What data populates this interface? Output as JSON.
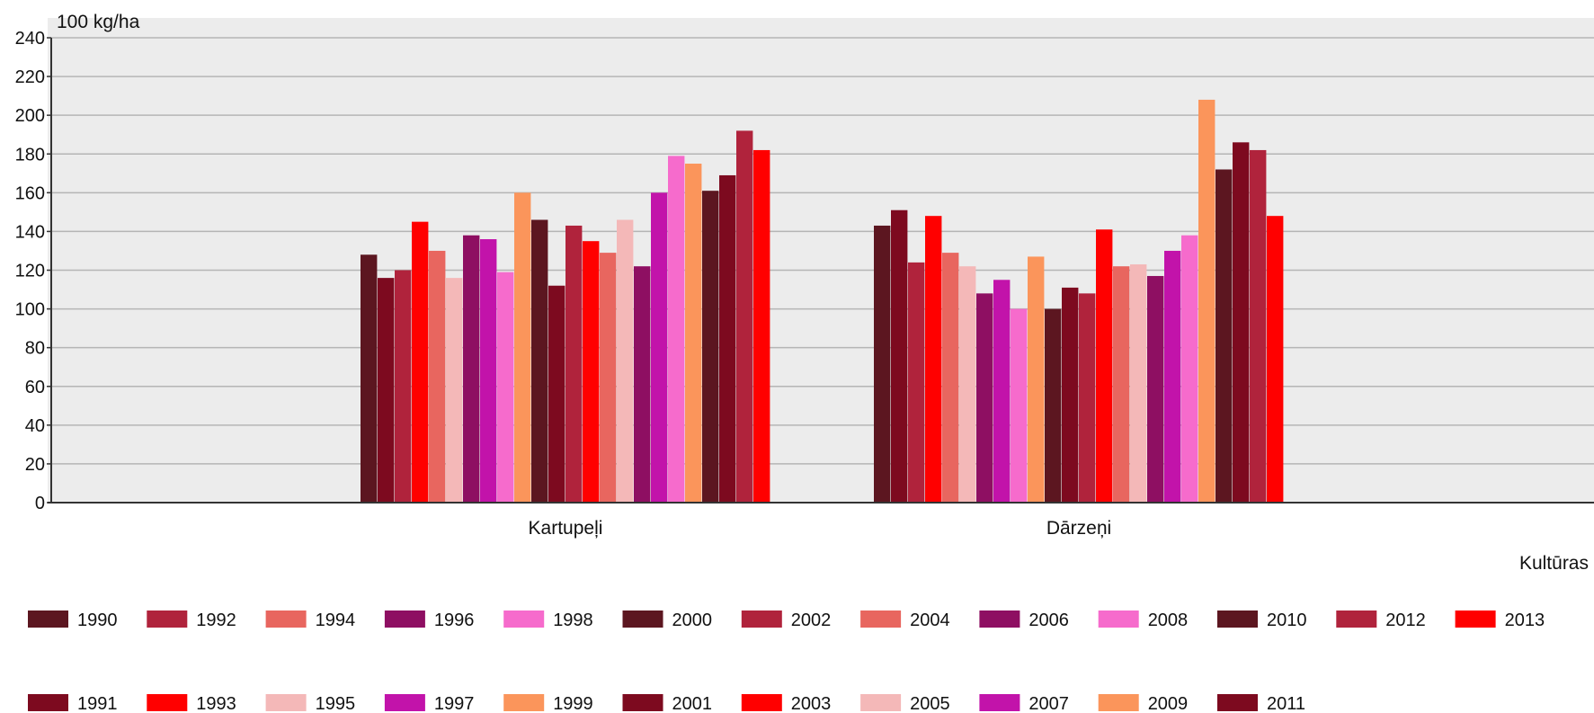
{
  "chart_data": {
    "type": "bar",
    "ylabel": "100 kg/ha",
    "xlabel": "Kultūras",
    "categories": [
      "Kartupeļi",
      "Dārzeņi"
    ],
    "ylim": [
      0,
      240
    ],
    "yticks": [
      0,
      20,
      40,
      60,
      80,
      100,
      120,
      140,
      160,
      180,
      200,
      220,
      240
    ],
    "grid": true,
    "legend_position": "bottom",
    "series": [
      {
        "name": "1990",
        "color": "#5c1620",
        "values": [
          128,
          143
        ]
      },
      {
        "name": "1991",
        "color": "#7d0a1f",
        "values": [
          116,
          151
        ]
      },
      {
        "name": "1992",
        "color": "#b0233c",
        "values": [
          120,
          124
        ]
      },
      {
        "name": "1993",
        "color": "#ff0000",
        "values": [
          145,
          148
        ]
      },
      {
        "name": "1994",
        "color": "#e8665f",
        "values": [
          130,
          129
        ]
      },
      {
        "name": "1995",
        "color": "#f4b8b8",
        "values": [
          116,
          122
        ]
      },
      {
        "name": "1996",
        "color": "#8e0f62",
        "values": [
          138,
          108
        ]
      },
      {
        "name": "1997",
        "color": "#c213aa",
        "values": [
          136,
          115
        ]
      },
      {
        "name": "1998",
        "color": "#f66bcc",
        "values": [
          119,
          100
        ]
      },
      {
        "name": "1999",
        "color": "#fb955b",
        "values": [
          160,
          127
        ]
      },
      {
        "name": "2000",
        "color": "#5c1620",
        "values": [
          146,
          100
        ]
      },
      {
        "name": "2001",
        "color": "#7d0a1f",
        "values": [
          112,
          111
        ]
      },
      {
        "name": "2002",
        "color": "#b0233c",
        "values": [
          143,
          108
        ]
      },
      {
        "name": "2003",
        "color": "#ff0000",
        "values": [
          135,
          141
        ]
      },
      {
        "name": "2004",
        "color": "#e8665f",
        "values": [
          129,
          122
        ]
      },
      {
        "name": "2005",
        "color": "#f4b8b8",
        "values": [
          146,
          123
        ]
      },
      {
        "name": "2006",
        "color": "#8e0f62",
        "values": [
          122,
          117
        ]
      },
      {
        "name": "2007",
        "color": "#c213aa",
        "values": [
          160,
          130
        ]
      },
      {
        "name": "2008",
        "color": "#f66bcc",
        "values": [
          179,
          138
        ]
      },
      {
        "name": "2009",
        "color": "#fb955b",
        "values": [
          175,
          208
        ]
      },
      {
        "name": "2010",
        "color": "#5c1620",
        "values": [
          161,
          172
        ]
      },
      {
        "name": "2011",
        "color": "#7d0a1f",
        "values": [
          169,
          186
        ]
      },
      {
        "name": "2012",
        "color": "#b0233c",
        "values": [
          192,
          182
        ]
      },
      {
        "name": "2013",
        "color": "#ff0000",
        "values": [
          182,
          148
        ]
      }
    ]
  }
}
